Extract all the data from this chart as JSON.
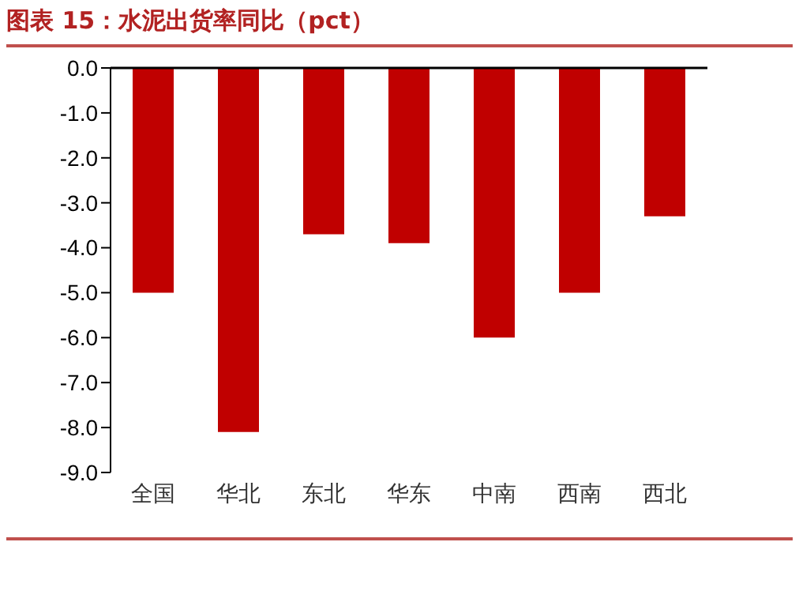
{
  "chart_data": {
    "type": "bar",
    "title": "图表 15：水泥出货率同比（pct）",
    "categories": [
      "全国",
      "华北",
      "东北",
      "华东",
      "中南",
      "西南",
      "西北"
    ],
    "values": [
      -5.0,
      -8.1,
      -3.7,
      -3.9,
      -6.0,
      -5.0,
      -3.3
    ],
    "color": "#c00000",
    "ylim": [
      -9,
      0
    ],
    "yticks": [
      {
        "value": 0,
        "label": "0.0"
      },
      {
        "value": -1,
        "label": "-1.0"
      },
      {
        "value": -2,
        "label": "-2.0"
      },
      {
        "value": -3,
        "label": "-3.0"
      },
      {
        "value": -4,
        "label": "-4.0"
      },
      {
        "value": -5,
        "label": "-5.0"
      },
      {
        "value": -6,
        "label": "-6.0"
      },
      {
        "value": -7,
        "label": "-7.0"
      },
      {
        "value": -8,
        "label": "-8.0"
      },
      {
        "value": -9,
        "label": "-9.0"
      }
    ],
    "grid": false,
    "legend": false
  }
}
